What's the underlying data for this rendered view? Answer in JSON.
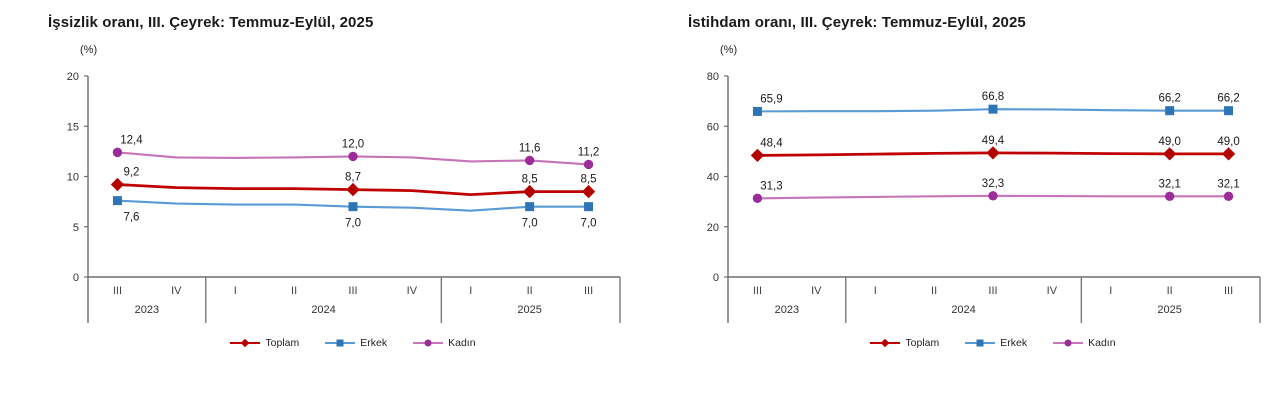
{
  "page": {
    "background": "#ffffff"
  },
  "chart_data": [
    {
      "type": "line",
      "title": "İşsizlik oranı, III. Çeyrek: Temmuz-Eylül, 2025",
      "unit": "(%)",
      "y_axis": {
        "min": 0,
        "max": 20,
        "step": 5,
        "ticks": [
          20,
          15,
          10,
          5,
          0
        ]
      },
      "x_axis": {
        "groups": [
          {
            "year": "2023",
            "quarters": [
              "III",
              "IV"
            ]
          },
          {
            "year": "2024",
            "quarters": [
              "I",
              "II",
              "III",
              "IV"
            ]
          },
          {
            "year": "2025",
            "quarters": [
              "I",
              "II",
              "III"
            ]
          }
        ]
      },
      "legend_position": "bottom",
      "grid": false,
      "series": [
        {
          "name": "Toplam",
          "line_color": "#C00000",
          "marker_color": "#B50000",
          "marker": "diamond",
          "label_side": "above",
          "values": [
            9.2,
            8.9,
            8.8,
            8.8,
            8.7,
            8.6,
            8.2,
            8.5,
            8.5
          ],
          "point_labels": {
            "0": "9,2",
            "4": "8,7",
            "7": "8,5",
            "8": "8,5"
          }
        },
        {
          "name": "Erkek",
          "line_color": "#5B9BD5",
          "marker_color": "#2E75B6",
          "marker": "square",
          "label_side": "below",
          "values": [
            7.6,
            7.3,
            7.2,
            7.2,
            7.0,
            6.9,
            6.6,
            7.0,
            7.0
          ],
          "point_labels": {
            "0": "7,6",
            "4": "7,0",
            "7": "7,0",
            "8": "7,0"
          }
        },
        {
          "name": "Kadın",
          "line_color": "#C673B8",
          "marker_color": "#9B2D9B",
          "marker": "circle",
          "label_side": "above",
          "values": [
            12.4,
            11.9,
            11.85,
            11.9,
            12.0,
            11.9,
            11.5,
            11.6,
            11.2
          ],
          "point_labels": {
            "0": "12,4",
            "4": "12,0",
            "7": "11,6",
            "8": "11,2"
          }
        }
      ]
    },
    {
      "type": "line",
      "title": "İstihdam oranı, III. Çeyrek: Temmuz-Eylül, 2025",
      "unit": "(%)",
      "y_axis": {
        "min": 0,
        "max": 80,
        "step": 20,
        "ticks": [
          80,
          60,
          40,
          20,
          0
        ]
      },
      "x_axis": {
        "groups": [
          {
            "year": "2023",
            "quarters": [
              "III",
              "IV"
            ]
          },
          {
            "year": "2024",
            "quarters": [
              "I",
              "II",
              "III",
              "IV"
            ]
          },
          {
            "year": "2025",
            "quarters": [
              "I",
              "II",
              "III"
            ]
          }
        ]
      },
      "legend_position": "bottom",
      "grid": false,
      "series": [
        {
          "name": "Toplam",
          "line_color": "#C00000",
          "marker_color": "#B50000",
          "marker": "diamond",
          "label_side": "above",
          "values": [
            48.4,
            48.6,
            48.9,
            49.2,
            49.4,
            49.3,
            49.1,
            49.0,
            49.0
          ],
          "point_labels": {
            "0": "48,4",
            "4": "49,4",
            "7": "49,0",
            "8": "49,0"
          }
        },
        {
          "name": "Erkek",
          "line_color": "#5B9BD5",
          "marker_color": "#2E75B6",
          "marker": "square",
          "label_side": "above",
          "values": [
            65.9,
            66.0,
            66.0,
            66.2,
            66.8,
            66.7,
            66.4,
            66.2,
            66.2
          ],
          "point_labels": {
            "0": "65,9",
            "4": "66,8",
            "7": "66,2",
            "8": "66,2"
          }
        },
        {
          "name": "Kadın",
          "line_color": "#C673B8",
          "marker_color": "#9B2D9B",
          "marker": "circle",
          "label_side": "above",
          "values": [
            31.3,
            31.6,
            31.9,
            32.1,
            32.3,
            32.2,
            32.1,
            32.1,
            32.1
          ],
          "point_labels": {
            "0": "31,3",
            "4": "32,3",
            "7": "32,1",
            "8": "32,1"
          }
        }
      ]
    }
  ]
}
